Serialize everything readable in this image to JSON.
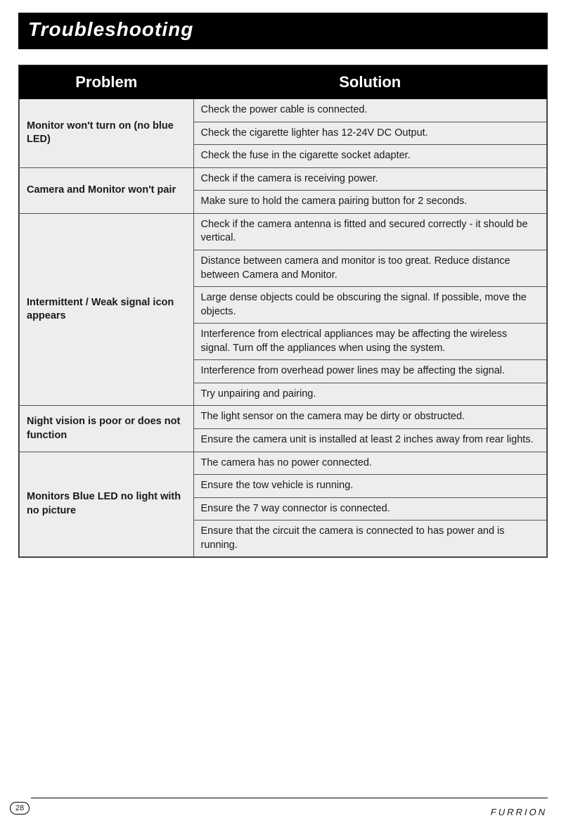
{
  "page": {
    "title": "Troubleshooting",
    "number": "28",
    "brand": "FURRION"
  },
  "table": {
    "headers": {
      "problem": "Problem",
      "solution": "Solution"
    },
    "rows": [
      {
        "problem": "Monitor won't turn on (no blue LED)",
        "solutions": [
          "Check the power cable is connected.",
          "Check the cigarette lighter has 12-24V DC Output.",
          "Check the fuse in the cigarette socket adapter."
        ]
      },
      {
        "problem": "Camera and Monitor won't pair",
        "solutions": [
          "Check if the camera is receiving power.",
          "Make sure to hold the camera pairing button for 2 seconds."
        ]
      },
      {
        "problem": "Intermittent / Weak signal icon appears",
        "solutions": [
          "Check if the camera antenna is fitted and secured correctly - it should be vertical.",
          "Distance between camera and monitor is too great. Reduce distance between Camera and Monitor.",
          "Large dense objects could be obscuring the signal. If possible, move the objects.",
          "Interference from electrical appliances may be affecting the wireless signal. Turn off the appliances when using the system.",
          "Interference from overhead power lines may be affecting the signal.",
          "Try unpairing and pairing."
        ]
      },
      {
        "problem": "Night vision is poor or does not function",
        "solutions": [
          "The light sensor on the camera may be dirty or obstructed.",
          "Ensure the camera unit is installed at least 2 inches away from rear lights."
        ]
      },
      {
        "problem": "Monitors Blue LED no light with no picture",
        "solutions": [
          "The camera has no power connected.",
          "Ensure the tow vehicle is running.",
          "Ensure the 7 way connector is connected.",
          "Ensure that the circuit the camera is connected to has power and is running."
        ]
      }
    ]
  },
  "style": {
    "title_bg": "#000000",
    "title_color": "#ffffff",
    "title_fontsize": 28,
    "header_bg": "#000000",
    "header_color": "#ffffff",
    "header_fontsize": 22,
    "cell_bg": "#ededed",
    "cell_border": "#555555",
    "cell_fontsize": 14.5,
    "page_bg": "#ffffff"
  }
}
